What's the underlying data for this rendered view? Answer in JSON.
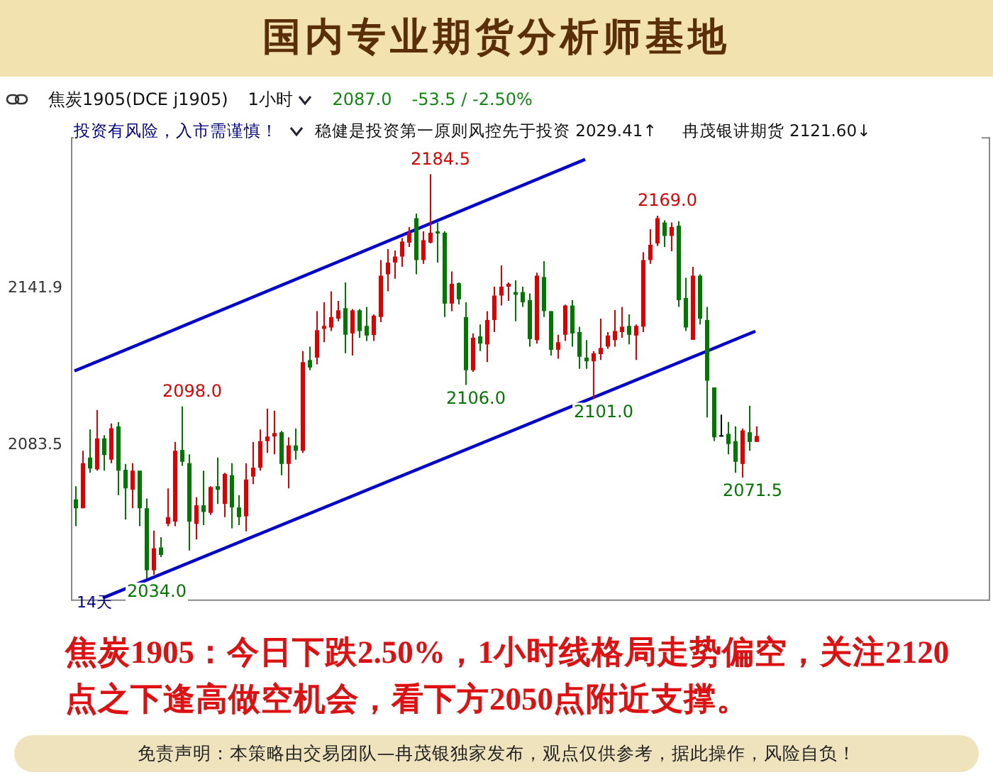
{
  "chart_data": {
    "type": "candlestick",
    "title": "国内专业期货分析师基地",
    "annotations": [
      "焦炭1905(DCE j1905)",
      "1小时",
      "2087.0",
      "-53.5 / -2.50%",
      "投资有风险，入市需谨慎！",
      "稳健是投资第一原则风控先于投资 2029.41↑",
      "冉茂银讲期货 2121.60↓",
      "14天",
      "焦炭1905：今日下跌2.50%，1小时线格局走势偏空，关注2120点之下逢高做空机会，看下方2050点附近支撑。",
      "免责声明：本策略由交易团队—冉茂银独家发布，观点仅供参考，据此操作，风险自负！",
      "2184.5",
      "2169.0",
      "2098.0",
      "2034.0",
      "2106.0",
      "2101.0",
      "2071.5"
    ],
    "categories": [
      null,
      null,
      null,
      null,
      null,
      null,
      null,
      null,
      null,
      null,
      null,
      null,
      null,
      null,
      null,
      null,
      null,
      null,
      null,
      null,
      null,
      null,
      null,
      null,
      null,
      null,
      null,
      null,
      null,
      null,
      null,
      null,
      null,
      null,
      null,
      null,
      null,
      null,
      null,
      null,
      null,
      null,
      null,
      null,
      null,
      null,
      null,
      null,
      null,
      null,
      null,
      null,
      null,
      null,
      null,
      null,
      null,
      null,
      null,
      null,
      null,
      null,
      null,
      null,
      null,
      null,
      null,
      null,
      null,
      null,
      null,
      null,
      null,
      null,
      null,
      null,
      null,
      null,
      null,
      null,
      null,
      null,
      null,
      null,
      null,
      null,
      null,
      null,
      null,
      null,
      null,
      null,
      null,
      null,
      null,
      null,
      null
    ],
    "ohlc": [
      [
        2063.4,
        2068.3,
        2053.4,
        2060.1
      ],
      [
        2060.1,
        2081.5,
        2060.1,
        2076.9
      ],
      [
        2079.0,
        2089.4,
        2073.3,
        2074.9
      ],
      [
        2074.6,
        2096.7,
        2074.1,
        2086.1
      ],
      [
        2086.1,
        2087.3,
        2074.1,
        2079.9
      ],
      [
        2078.2,
        2091.7,
        2076.9,
        2089.9
      ],
      [
        2090.6,
        2092.2,
        2065.0,
        2074.1
      ],
      [
        2074.4,
        2076.6,
        2055.9,
        2067.5
      ],
      [
        2067.0,
        2076.9,
        2060.1,
        2074.1
      ],
      [
        2074.1,
        2074.1,
        2053.4,
        2060.1
      ],
      [
        2060.1,
        2063.7,
        2034.0,
        2037.0
      ],
      [
        2037.0,
        2051.8,
        2035.3,
        2045.2
      ],
      [
        2045.5,
        2049.3,
        2041.9,
        2042.7
      ],
      [
        2054.3,
        2067.5,
        2053.4,
        2056.8
      ],
      [
        2055.1,
        2084.8,
        2053.4,
        2081.5
      ],
      [
        2081.8,
        2098.0,
        2075.9,
        2077.4
      ],
      [
        2076.9,
        2080.2,
        2044.4,
        2055.1
      ],
      [
        2054.3,
        2064.2,
        2048.5,
        2061.2
      ],
      [
        2061.2,
        2074.1,
        2053.8,
        2058.7
      ],
      [
        2058.4,
        2068.3,
        2057.6,
        2068.0
      ],
      [
        2068.3,
        2079.0,
        2061.7,
        2067.0
      ],
      [
        2061.7,
        2073.3,
        2056.8,
        2072.9
      ],
      [
        2072.4,
        2076.9,
        2052.6,
        2060.4
      ],
      [
        2060.4,
        2065.0,
        2053.8,
        2056.8
      ],
      [
        2057.1,
        2076.9,
        2051.5,
        2070.8
      ],
      [
        2071.9,
        2084.8,
        2069.1,
        2075.2
      ],
      [
        2075.2,
        2089.4,
        2074.1,
        2085.1
      ],
      [
        2085.1,
        2097.2,
        2080.7,
        2086.8
      ],
      [
        2086.8,
        2096.4,
        2080.2,
        2088.1
      ],
      [
        2088.4,
        2088.9,
        2072.4,
        2076.6
      ],
      [
        2076.6,
        2086.5,
        2067.5,
        2083.5
      ],
      [
        2083.5,
        2089.8,
        2078.2,
        2081.5
      ],
      [
        2081.5,
        2118.6,
        2080.7,
        2114.5
      ],
      [
        2115.3,
        2120.3,
        2111.5,
        2112.5
      ],
      [
        2116.2,
        2133.5,
        2113.7,
        2126.4
      ],
      [
        2126.9,
        2136.8,
        2121.9,
        2128.0
      ],
      [
        2127.4,
        2140.9,
        2126.1,
        2131.3
      ],
      [
        2130.7,
        2137.3,
        2129.7,
        2133.8
      ],
      [
        2134.6,
        2144.2,
        2117.8,
        2124.7
      ],
      [
        2125.2,
        2134.3,
        2117.0,
        2133.8
      ],
      [
        2133.8,
        2134.3,
        2123.6,
        2126.1
      ],
      [
        2128.0,
        2135.1,
        2122.4,
        2124.4
      ],
      [
        2124.6,
        2132.3,
        2122.4,
        2131.8
      ],
      [
        2131.3,
        2152.5,
        2129.4,
        2146.7
      ],
      [
        2147.2,
        2156.6,
        2140.9,
        2151.6
      ],
      [
        2151.6,
        2156.1,
        2145.6,
        2153.8
      ],
      [
        2153.8,
        2160.7,
        2150.0,
        2159.4
      ],
      [
        2159.0,
        2164.8,
        2157.4,
        2162.7
      ],
      [
        2168.1,
        2169.8,
        2147.2,
        2152.5
      ],
      [
        2152.5,
        2163.2,
        2151.1,
        2159.9
      ],
      [
        2159.0,
        2184.5,
        2158.7,
        2162.7
      ],
      [
        2163.2,
        2166.5,
        2151.6,
        2162.4
      ],
      [
        2162.7,
        2163.2,
        2131.3,
        2136.3
      ],
      [
        2136.3,
        2148.3,
        2133.5,
        2143.7
      ],
      [
        2143.9,
        2144.2,
        2136.0,
        2137.9
      ],
      [
        2131.3,
        2136.8,
        2106.0,
        2111.5
      ],
      [
        2111.5,
        2125.2,
        2110.9,
        2123.6
      ],
      [
        2124.1,
        2128.5,
        2118.6,
        2121.4
      ],
      [
        2121.1,
        2133.5,
        2114.5,
        2130.2
      ],
      [
        2130.2,
        2142.6,
        2125.7,
        2139.3
      ],
      [
        2139.3,
        2150.5,
        2135.6,
        2142.6
      ],
      [
        2142.6,
        2144.2,
        2137.3,
        2143.7
      ],
      [
        2140.6,
        2145.0,
        2129.7,
        2139.6
      ],
      [
        2140.6,
        2142.6,
        2135.1,
        2136.8
      ],
      [
        2137.6,
        2140.1,
        2120.3,
        2123.1
      ],
      [
        2122.7,
        2147.8,
        2121.4,
        2146.7
      ],
      [
        2146.2,
        2152.1,
        2131.3,
        2133.5
      ],
      [
        2133.5,
        2133.5,
        2117.0,
        2119.1
      ],
      [
        2119.1,
        2124.7,
        2115.8,
        2121.9
      ],
      [
        2124.7,
        2135.9,
        2122.4,
        2135.6
      ],
      [
        2135.6,
        2137.6,
        2120.3,
        2125.2
      ],
      [
        2125.7,
        2127.7,
        2112.0,
        2116.5
      ],
      [
        2116.2,
        2122.7,
        2112.0,
        2114.8
      ],
      [
        2114.8,
        2118.6,
        2101.0,
        2117.8
      ],
      [
        2117.5,
        2130.7,
        2115.3,
        2119.8
      ],
      [
        2120.3,
        2125.7,
        2119.5,
        2124.4
      ],
      [
        2122.7,
        2133.9,
        2120.3,
        2126.1
      ],
      [
        2125.7,
        2135.1,
        2123.6,
        2127.7
      ],
      [
        2128.0,
        2132.3,
        2121.1,
        2124.7
      ],
      [
        2124.4,
        2128.5,
        2115.3,
        2128.0
      ],
      [
        2127.7,
        2155.4,
        2125.7,
        2152.5
      ],
      [
        2152.5,
        2164.0,
        2151.1,
        2158.2
      ],
      [
        2158.7,
        2169.0,
        2157.7,
        2168.1
      ],
      [
        2166.5,
        2167.3,
        2157.4,
        2161.5
      ],
      [
        2161.5,
        2166.5,
        2155.8,
        2164.8
      ],
      [
        2165.3,
        2167.0,
        2135.1,
        2137.6
      ],
      [
        2138.4,
        2145.9,
        2126.1,
        2127.4
      ],
      [
        2122.8,
        2150.0,
        2122.8,
        2146.7
      ],
      [
        2146.7,
        2147.2,
        2128.5,
        2130.7
      ],
      [
        2130.2,
        2135.1,
        2093.9,
        2107.6
      ],
      [
        2105.1,
        2105.1,
        2085.1,
        2086.5
      ],
      [
        2087.3,
        2095.0,
        2086.8,
        2087.3
      ],
      [
        2087.8,
        2092.2,
        2080.2,
        2084.0
      ],
      [
        2085.1,
        2090.6,
        2073.3,
        2077.4
      ],
      [
        2076.6,
        2089.8,
        2071.5,
        2089.1
      ],
      [
        2088.4,
        2098.3,
        2081.5,
        2084.8
      ],
      [
        2084.8,
        2090.6,
        2084.8,
        2087.0
      ]
    ],
    "colors": [
      "#007800",
      "#dd0000",
      "#007800",
      "#dd0000",
      "#007800",
      "#dd0000",
      "#007800",
      "#007800",
      "#dd0000",
      "#007800",
      "#007800",
      "#dd0000",
      "#007800",
      "#dd0000",
      "#dd0000",
      "#007800",
      "#007800",
      "#dd0000",
      "#007800",
      "#dd0000",
      "#007800",
      "#dd0000",
      "#007800",
      "#007800",
      "#dd0000",
      "#dd0000",
      "#dd0000",
      "#dd0000",
      "#dd0000",
      "#007800",
      "#dd0000",
      "#007800",
      "#dd0000",
      "#007800",
      "#dd0000",
      "#dd0000",
      "#dd0000",
      "#dd0000",
      "#007800",
      "#dd0000",
      "#007800",
      "#007800",
      "#dd0000",
      "#dd0000",
      "#dd0000",
      "#dd0000",
      "#dd0000",
      "#dd0000",
      "#007800",
      "#dd0000",
      "#dd0000",
      "#007800",
      "#007800",
      "#dd0000",
      "#007800",
      "#007800",
      "#dd0000",
      "#007800",
      "#dd0000",
      "#dd0000",
      "#dd0000",
      "#dd0000",
      "#007800",
      "#007800",
      "#007800",
      "#dd0000",
      "#007800",
      "#007800",
      "#dd0000",
      "#dd0000",
      "#007800",
      "#007800",
      "#007800",
      "#dd0000",
      "#dd0000",
      "#dd0000",
      "#dd0000",
      "#dd0000",
      "#007800",
      "#dd0000",
      "#dd0000",
      "#dd0000",
      "#dd0000",
      "#007800",
      "#dd0000",
      "#007800",
      "#007800",
      "#dd0000",
      "#007800",
      "#007800",
      "#007800",
      "#000000",
      "#007800",
      "#007800",
      "#dd0000",
      "#007800",
      "#dd0000"
    ],
    "series": [
      {
        "type": "line",
        "color": "#0000cc",
        "values": [
          2111.2,
          null,
          null,
          null,
          null,
          null,
          null,
          null,
          null,
          null,
          null,
          null,
          null,
          null,
          null,
          null,
          null,
          null,
          null,
          null,
          null,
          null,
          null,
          null,
          null,
          null,
          null,
          null,
          null,
          null,
          null,
          null,
          null,
          null,
          null,
          null,
          null,
          null,
          null,
          null,
          null,
          null,
          null,
          null,
          null,
          null,
          null,
          null,
          null,
          null,
          null,
          null,
          null,
          null,
          null,
          null,
          null,
          null,
          null,
          null,
          null,
          null,
          null,
          null,
          null,
          null,
          null,
          null,
          null,
          null,
          null,
          null,
          2190.0,
          null,
          null,
          null,
          null,
          null,
          null,
          null,
          null,
          null,
          null,
          null,
          null,
          null,
          null,
          null,
          null,
          null,
          null,
          null,
          null,
          null,
          null,
          null,
          null
        ]
      },
      {
        "type": "line",
        "color": "#0000cc",
        "values": [
          null,
          null,
          null,
          null,
          2026.7,
          null,
          null,
          null,
          null,
          null,
          null,
          null,
          null,
          null,
          null,
          null,
          null,
          null,
          null,
          null,
          null,
          null,
          null,
          null,
          null,
          null,
          null,
          null,
          null,
          null,
          null,
          null,
          null,
          null,
          null,
          null,
          null,
          null,
          null,
          null,
          null,
          null,
          null,
          null,
          null,
          null,
          null,
          null,
          null,
          null,
          null,
          null,
          null,
          null,
          null,
          null,
          null,
          null,
          null,
          null,
          null,
          null,
          null,
          null,
          null,
          null,
          null,
          null,
          null,
          null,
          null,
          null,
          null,
          null,
          null,
          null,
          null,
          null,
          null,
          null,
          null,
          null,
          null,
          null,
          null,
          null,
          null,
          null,
          null,
          null,
          null,
          null,
          null,
          null,
          null,
          null,
          2126.0
        ]
      }
    ],
    "ylim": [
      2025.6,
      2198.3
    ],
    "yticks": [
      2141.9,
      2083.5
    ],
    "tick_labels": "y",
    "grid": false,
    "legend": false
  }
}
